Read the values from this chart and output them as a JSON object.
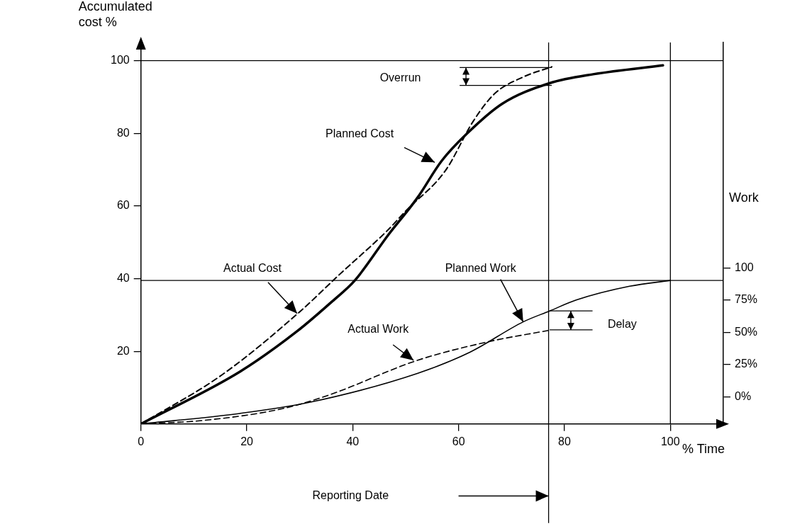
{
  "chart_data": {
    "type": "line",
    "ylabel": "Accumulated cost %",
    "xlabel": "% Time",
    "y2label": "Work",
    "xlim": [
      0,
      110
    ],
    "xticks": [
      {
        "value": 0,
        "label": "0"
      },
      20,
      40,
      60,
      80,
      100
    ],
    "ylim": [
      0,
      105
    ],
    "yticks": [
      20,
      40,
      60,
      80,
      100
    ],
    "y2lim": [
      -21,
      275
    ],
    "y2ticks": [
      {
        "value": 0,
        "label": "0%"
      },
      {
        "value": 25,
        "label": "25%"
      },
      {
        "value": 50,
        "label": "50%"
      },
      {
        "value": 75,
        "label": "75%"
      },
      {
        "value": 100,
        "label": "100"
      }
    ],
    "grid": false,
    "legend": false,
    "marker": "none",
    "series": [
      {
        "color": "#000000",
        "line_style": "solid",
        "x": [
          0,
          18.7,
          29.4,
          36.1,
          40.4,
          46.8,
          52.2,
          56.8,
          61.5,
          68.2,
          77.2,
          85.6,
          98.6
        ],
        "values": [
          0,
          14.4,
          25.4,
          33.7,
          39.5,
          52.2,
          62.2,
          72.4,
          79.8,
          88.1,
          93.8,
          96.3,
          98.7
        ]
      },
      {
        "color": "#000000",
        "line_style": "dashed",
        "x": [
          0,
          15.3,
          30.1,
          37.4,
          46.8,
          50,
          57.5,
          62.8,
          66.8,
          72.2,
          77.6
        ],
        "values": [
          0,
          13.5,
          31,
          41,
          53.6,
          58.6,
          69.7,
          83.4,
          90.9,
          95.5,
          98.3
        ]
      },
      {
        "color": "#000000",
        "line_style": "solid",
        "x": [
          0,
          18.7,
          32,
          52.2,
          62.2,
          72.2,
          77.2,
          82.2,
          92.3,
          100
        ],
        "values": [
          0,
          2.9,
          6,
          13.9,
          19.8,
          28.1,
          31.1,
          34.1,
          37.9,
          39.5
        ]
      },
      {
        "color": "#000000",
        "line_style": "dashed",
        "x": [
          0,
          12,
          26.7,
          35.4,
          52.2,
          65.5,
          77.2
        ],
        "values": [
          0,
          1,
          4.2,
          7.9,
          17.5,
          22.6,
          25.8
        ]
      }
    ],
    "ref_lines": [
      {
        "axis": "x",
        "value": 77
      },
      {
        "axis": "x",
        "value": 100
      },
      {
        "axis": "y",
        "value": 100
      },
      {
        "axis": "y",
        "value": 39.5
      }
    ],
    "annotations": [
      "Overrun",
      "Delay",
      {
        "text": "Planned Cost",
        "x": 55.5,
        "y": 72
      },
      {
        "text": "Actual Cost",
        "x": 29.5,
        "y": 30.4
      },
      {
        "text": "Planned Work",
        "x": 72.2,
        "y": 28.1
      },
      {
        "text": "Actual Work",
        "x": 51.5,
        "y": 17.5
      },
      "Reporting Date"
    ]
  }
}
